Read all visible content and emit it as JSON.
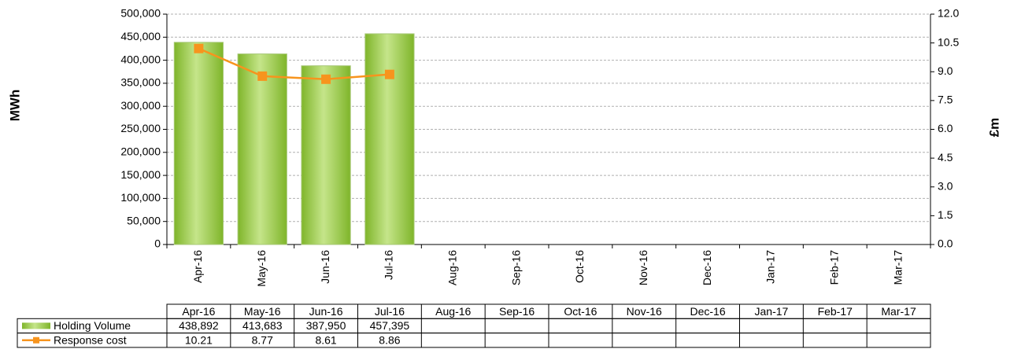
{
  "chart_data": {
    "type": "bar-line",
    "y_label": "MWh",
    "y2_label": "£m",
    "categories": [
      "Apr-16",
      "May-16",
      "Jun-16",
      "Jul-16",
      "Aug-16",
      "Sep-16",
      "Oct-16",
      "Nov-16",
      "Dec-16",
      "Jan-17",
      "Feb-17",
      "Mar-17"
    ],
    "series": [
      {
        "name": "Holding Volume",
        "type": "bar",
        "color": "#92c83e",
        "values": [
          438892,
          413683,
          387950,
          457395,
          null,
          null,
          null,
          null,
          null,
          null,
          null,
          null
        ],
        "value_labels": [
          "438,892",
          "413,683",
          "387,950",
          "457,395",
          null,
          null,
          null,
          null,
          null,
          null,
          null,
          null
        ]
      },
      {
        "name": "Response cost",
        "type": "line",
        "axis": "y2",
        "color": "#f7941d",
        "values": [
          10.21,
          8.77,
          8.61,
          8.86,
          null,
          null,
          null,
          null,
          null,
          null,
          null,
          null
        ]
      }
    ],
    "ylim": [
      0,
      500000
    ],
    "yticks": [
      0,
      {
        "value": 50000,
        "label": "50,000"
      },
      {
        "value": 100000,
        "label": "100,000"
      },
      {
        "value": 150000,
        "label": "150,000"
      },
      {
        "value": 200000,
        "label": "200,000"
      },
      {
        "value": 250000,
        "label": "250,000"
      },
      {
        "value": 300000,
        "label": "300,000"
      },
      {
        "value": 350000,
        "label": "350,000"
      },
      {
        "value": 400000,
        "label": "400,000"
      },
      {
        "value": 450000,
        "label": "450,000"
      },
      {
        "value": 500000,
        "label": "500,000"
      }
    ],
    "y2lim": [
      0,
      12
    ],
    "y2ticks": [
      {
        "value": 0,
        "label": "0.0"
      },
      1.5,
      {
        "value": 3,
        "label": "3.0"
      },
      4.5,
      {
        "value": 6,
        "label": "6.0"
      },
      7.5,
      {
        "value": 9,
        "label": "9.0"
      },
      10.5,
      {
        "value": 12,
        "label": "12.0"
      }
    ],
    "grid": true
  }
}
